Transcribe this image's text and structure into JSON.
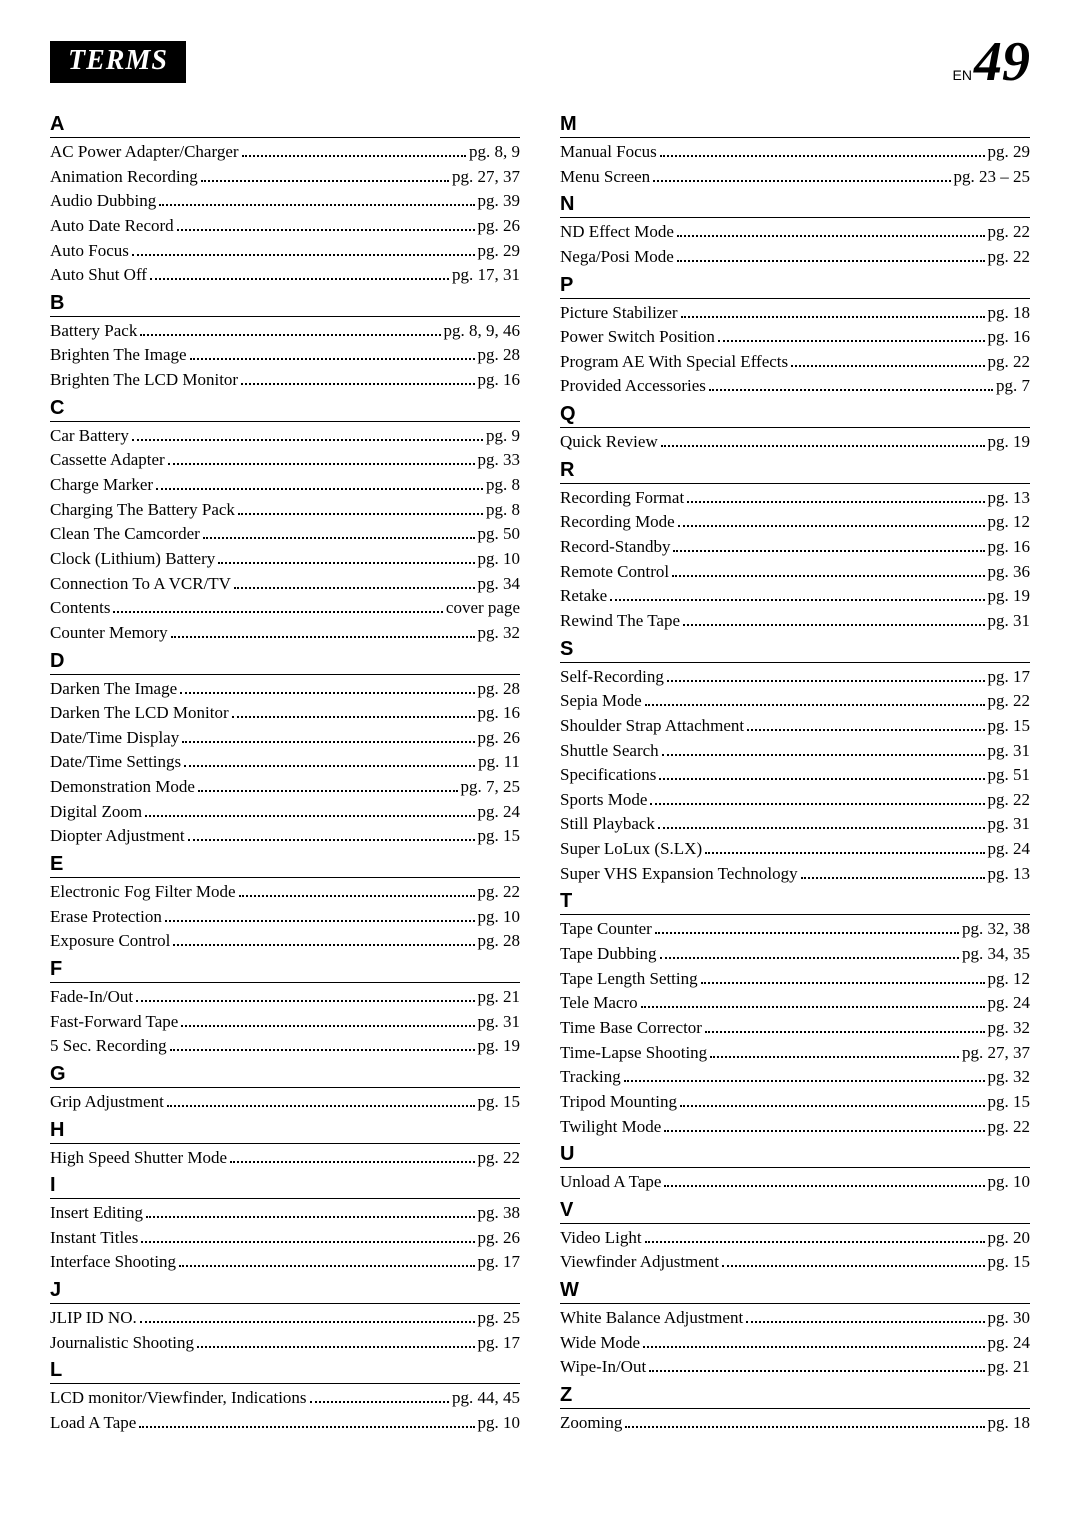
{
  "header": {
    "title": "TERMS",
    "en_label": "EN",
    "page_number": "49"
  },
  "colors": {
    "background": "#ffffff",
    "badge_bg": "#000000",
    "badge_text": "#ffffff",
    "text": "#000000",
    "rule": "#000000"
  },
  "typography": {
    "body_family": "Times New Roman, serif",
    "letter_family": "Arial, sans-serif",
    "entry_fontsize": 17,
    "letter_fontsize": 20,
    "badge_fontsize": 28,
    "pagenum_fontsize": 56
  },
  "left_column": [
    {
      "letter": "A",
      "entries": [
        {
          "term": "AC Power Adapter/Charger",
          "page": "pg. 8, 9"
        },
        {
          "term": "Animation Recording",
          "page": "pg. 27, 37"
        },
        {
          "term": "Audio Dubbing",
          "page": "pg. 39"
        },
        {
          "term": "Auto Date Record",
          "page": "pg. 26"
        },
        {
          "term": "Auto Focus",
          "page": "pg. 29"
        },
        {
          "term": "Auto Shut Off",
          "page": "pg. 17, 31"
        }
      ]
    },
    {
      "letter": "B",
      "entries": [
        {
          "term": "Battery Pack",
          "page": "pg. 8, 9, 46"
        },
        {
          "term": "Brighten The Image",
          "page": "pg. 28"
        },
        {
          "term": "Brighten The LCD Monitor",
          "page": "pg. 16"
        }
      ]
    },
    {
      "letter": "C",
      "entries": [
        {
          "term": "Car Battery",
          "page": "pg. 9"
        },
        {
          "term": "Cassette Adapter",
          "page": "pg. 33"
        },
        {
          "term": "Charge Marker",
          "page": "pg. 8"
        },
        {
          "term": "Charging The Battery Pack",
          "page": "pg. 8"
        },
        {
          "term": "Clean The Camcorder",
          "page": "pg. 50"
        },
        {
          "term": "Clock (Lithium) Battery",
          "page": "pg. 10"
        },
        {
          "term": "Connection To A VCR/TV",
          "page": "pg. 34"
        },
        {
          "term": "Contents",
          "page": "cover page"
        },
        {
          "term": "Counter Memory",
          "page": "pg. 32"
        }
      ]
    },
    {
      "letter": "D",
      "entries": [
        {
          "term": "Darken The Image",
          "page": "pg. 28"
        },
        {
          "term": "Darken The LCD Monitor",
          "page": "pg. 16"
        },
        {
          "term": "Date/Time Display",
          "page": "pg. 26"
        },
        {
          "term": "Date/Time Settings",
          "page": "pg. 11"
        },
        {
          "term": "Demonstration Mode",
          "page": "pg. 7, 25"
        },
        {
          "term": "Digital Zoom",
          "page": "pg. 24"
        },
        {
          "term": "Diopter Adjustment",
          "page": "pg. 15"
        }
      ]
    },
    {
      "letter": "E",
      "entries": [
        {
          "term": "Electronic Fog Filter Mode",
          "page": "pg. 22"
        },
        {
          "term": "Erase Protection",
          "page": "pg. 10"
        },
        {
          "term": "Exposure Control",
          "page": "pg. 28"
        }
      ]
    },
    {
      "letter": "F",
      "entries": [
        {
          "term": "Fade-In/Out",
          "page": "pg. 21"
        },
        {
          "term": "Fast-Forward Tape",
          "page": "pg. 31"
        },
        {
          "term": "5 Sec. Recording",
          "page": "pg. 19"
        }
      ]
    },
    {
      "letter": "G",
      "entries": [
        {
          "term": "Grip Adjustment",
          "page": "pg. 15"
        }
      ]
    },
    {
      "letter": "H",
      "entries": [
        {
          "term": "High Speed Shutter Mode",
          "page": "pg. 22"
        }
      ]
    },
    {
      "letter": "I",
      "entries": [
        {
          "term": "Insert Editing",
          "page": "pg. 38"
        },
        {
          "term": "Instant Titles",
          "page": "pg. 26"
        },
        {
          "term": "Interface Shooting",
          "page": "pg. 17"
        }
      ]
    },
    {
      "letter": "J",
      "entries": [
        {
          "term": "JLIP ID NO.",
          "page": "pg. 25"
        },
        {
          "term": "Journalistic Shooting",
          "page": "pg. 17"
        }
      ]
    },
    {
      "letter": "L",
      "entries": [
        {
          "term": "LCD monitor/Viewfinder, Indications",
          "page": "pg. 44, 45"
        },
        {
          "term": "Load A Tape",
          "page": "pg. 10"
        }
      ]
    }
  ],
  "right_column": [
    {
      "letter": "M",
      "entries": [
        {
          "term": "Manual Focus",
          "page": "pg. 29"
        },
        {
          "term": "Menu Screen",
          "page": "pg. 23 – 25"
        }
      ]
    },
    {
      "letter": "N",
      "entries": [
        {
          "term": "ND Effect Mode",
          "page": "pg. 22"
        },
        {
          "term": "Nega/Posi Mode",
          "page": "pg. 22"
        }
      ]
    },
    {
      "letter": "P",
      "entries": [
        {
          "term": "Picture Stabilizer",
          "page": "pg. 18"
        },
        {
          "term": "Power Switch Position",
          "page": "pg. 16"
        },
        {
          "term": "Program AE With Special Effects",
          "page": "pg. 22"
        },
        {
          "term": "Provided Accessories",
          "page": "pg. 7"
        }
      ]
    },
    {
      "letter": "Q",
      "entries": [
        {
          "term": "Quick Review",
          "page": "pg. 19"
        }
      ]
    },
    {
      "letter": "R",
      "entries": [
        {
          "term": "Recording Format",
          "page": "pg. 13"
        },
        {
          "term": "Recording Mode",
          "page": "pg. 12"
        },
        {
          "term": "Record-Standby",
          "page": "pg. 16"
        },
        {
          "term": "Remote Control",
          "page": "pg. 36"
        },
        {
          "term": "Retake",
          "page": "pg. 19"
        },
        {
          "term": "Rewind The Tape",
          "page": "pg. 31"
        }
      ]
    },
    {
      "letter": "S",
      "entries": [
        {
          "term": "Self-Recording",
          "page": "pg. 17"
        },
        {
          "term": "Sepia Mode",
          "page": "pg. 22"
        },
        {
          "term": "Shoulder Strap Attachment",
          "page": "pg. 15"
        },
        {
          "term": "Shuttle Search",
          "page": "pg. 31"
        },
        {
          "term": "Specifications",
          "page": "pg. 51"
        },
        {
          "term": "Sports Mode",
          "page": "pg. 22"
        },
        {
          "term": "Still Playback",
          "page": "pg. 31"
        },
        {
          "term": "Super LoLux (S.LX)",
          "page": "pg. 24"
        },
        {
          "term": "Super VHS Expansion Technology",
          "page": "pg. 13"
        }
      ]
    },
    {
      "letter": "T",
      "entries": [
        {
          "term": "Tape Counter",
          "page": "pg. 32, 38"
        },
        {
          "term": "Tape Dubbing",
          "page": "pg. 34, 35"
        },
        {
          "term": "Tape Length Setting",
          "page": "pg. 12"
        },
        {
          "term": "Tele Macro",
          "page": "pg. 24"
        },
        {
          "term": "Time Base Corrector",
          "page": "pg. 32"
        },
        {
          "term": "Time-Lapse Shooting",
          "page": "pg. 27, 37"
        },
        {
          "term": "Tracking",
          "page": "pg. 32"
        },
        {
          "term": "Tripod Mounting",
          "page": "pg. 15"
        },
        {
          "term": "Twilight Mode",
          "page": "pg. 22"
        }
      ]
    },
    {
      "letter": "U",
      "entries": [
        {
          "term": "Unload A Tape",
          "page": "pg. 10"
        }
      ]
    },
    {
      "letter": "V",
      "entries": [
        {
          "term": "Video Light",
          "page": "pg. 20"
        },
        {
          "term": "Viewfinder Adjustment",
          "page": "pg. 15"
        }
      ]
    },
    {
      "letter": "W",
      "entries": [
        {
          "term": "White Balance Adjustment",
          "page": "pg. 30"
        },
        {
          "term": "Wide Mode",
          "page": "pg. 24"
        },
        {
          "term": "Wipe-In/Out",
          "page": "pg. 21"
        }
      ]
    },
    {
      "letter": "Z",
      "entries": [
        {
          "term": "Zooming",
          "page": "pg. 18"
        }
      ]
    }
  ]
}
